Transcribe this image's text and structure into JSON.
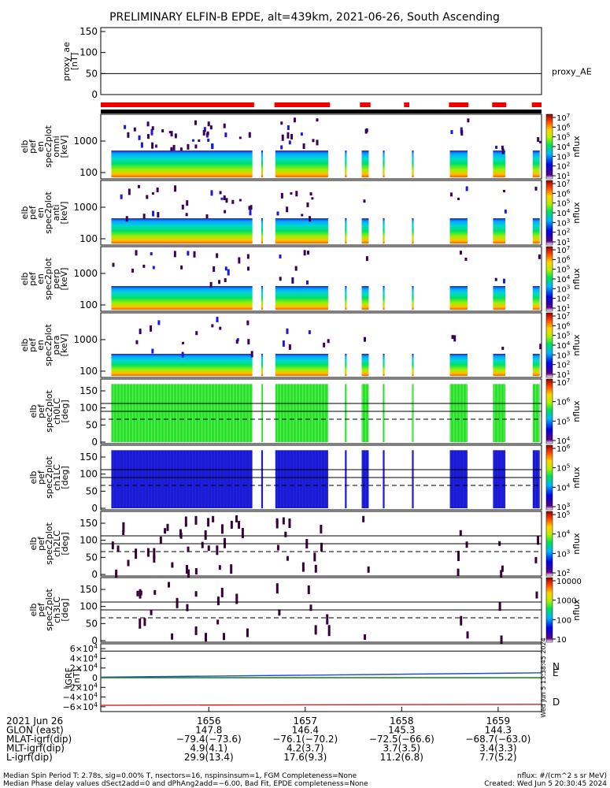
{
  "title": "PRELIMINARY ELFIN-B EPDE, alt=439km, 2021-06-26, South Ascending",
  "colors": {
    "text": "#000000",
    "flag_red": "#ee0000",
    "bx": "#1f4fd6",
    "by": "#22bb22",
    "bz": "#d21f1f",
    "N_label": "#1f4fd6",
    "E_label": "#22bb22",
    "D_label": "#d21f1f"
  },
  "ae_panel": {
    "ylabel_line1": "proxy_ae",
    "ylabel_line2": "[nT]",
    "ticks": [
      "150",
      "100",
      "50",
      "0"
    ],
    "legend": "proxy_AE"
  },
  "spectrogram_panels": [
    {
      "label_lines": [
        "elb",
        "pef",
        "en",
        "spec2plot",
        "omni",
        "[keV]"
      ],
      "yticks": [
        "1000",
        "100"
      ],
      "cbar": "flux",
      "cbar_label": "nflux",
      "cbar_ticks": [
        "10^7",
        "10^6",
        "10^5",
        "10^4",
        "10^3",
        "10^2",
        "10^1"
      ]
    },
    {
      "label_lines": [
        "elb",
        "pef",
        "en",
        "spec2plot",
        "anti",
        "[keV]"
      ],
      "yticks": [
        "1000",
        "100"
      ],
      "cbar": "flux",
      "cbar_label": "nflux",
      "cbar_ticks": [
        "10^7",
        "10^6",
        "10^5",
        "10^4",
        "10^3",
        "10^2",
        "10^1"
      ]
    },
    {
      "label_lines": [
        "elb",
        "pef",
        "en",
        "spec2plot",
        "perp",
        "[keV]"
      ],
      "yticks": [
        "1000",
        "100"
      ],
      "cbar": "flux",
      "cbar_label": "nflux",
      "cbar_ticks": [
        "10^7",
        "10^6",
        "10^5",
        "10^4",
        "10^3",
        "10^2",
        "10^1"
      ]
    },
    {
      "label_lines": [
        "elb",
        "pef",
        "en",
        "spec2plot",
        "para",
        "[keV]"
      ],
      "yticks": [
        "1000",
        "100"
      ],
      "cbar": "flux",
      "cbar_label": "nflux",
      "cbar_ticks": [
        "10^7",
        "10^6",
        "10^5",
        "10^4",
        "10^3",
        "10^2",
        "10^1"
      ]
    }
  ],
  "pitch_panels": [
    {
      "label_lines": [
        "elb",
        "pef",
        "spec2plot",
        "ch0LC",
        "[deg]"
      ],
      "yticks": [
        "150",
        "100",
        "50",
        "0"
      ],
      "cbar_label": "nflux",
      "cbar_ticks": [
        "10^7",
        "10^6",
        "10^5",
        "10^4"
      ]
    },
    {
      "label_lines": [
        "elb",
        "pef",
        "spec2plot",
        "ch1LC",
        "[deg]"
      ],
      "yticks": [
        "150",
        "100",
        "50",
        "0"
      ],
      "cbar_label": "nflux",
      "cbar_ticks": [
        "10^6",
        "10^5",
        "10^4",
        "10^3"
      ]
    },
    {
      "label_lines": [
        "elb",
        "pef",
        "spec2plot",
        "ch2LC",
        "[deg]"
      ],
      "yticks": [
        "150",
        "100",
        "50",
        "0"
      ],
      "cbar_label": "nflux",
      "cbar_ticks": [
        "10^5",
        "10^4",
        "10^3",
        "10^2"
      ]
    },
    {
      "label_lines": [
        "elb",
        "pef",
        "spec2plot",
        "ch3LC",
        "[deg]"
      ],
      "yticks": [
        "150",
        "100",
        "50",
        "0"
      ],
      "cbar_label": "nflux",
      "cbar_ticks": [
        "10000",
        "1000",
        "100",
        "10"
      ]
    }
  ],
  "igrf_panel": {
    "label_lines": [
      "IGRF",
      "[nT]"
    ],
    "ticks": [
      "6×10^4",
      "4×10^4",
      "2×10^4",
      "0",
      "−2×10^4",
      "−4×10^4",
      "−6×10^4"
    ],
    "legend": [
      "N",
      "E",
      "D"
    ],
    "side_stamp": "Wed Jun  5 13:38:45 2024"
  },
  "footer": {
    "rows": [
      {
        "label": "2021 Jun 26",
        "values": [
          "1656",
          "1657",
          "1658",
          "1659"
        ]
      },
      {
        "label": "GLON (east)",
        "values": [
          "147.8",
          "146.4",
          "145.3",
          "144.3"
        ]
      },
      {
        "label": "MLAT-igrf(dip)",
        "values": [
          "−79.4(−73.6)",
          "−76.1(−70.2)",
          "−72.5(−66.6)",
          "−68.7(−63.0)"
        ]
      },
      {
        "label": "MLT-igrf(dip)",
        "values": [
          "4.9(4.1)",
          "4.2(3.7)",
          "3.7(3.5)",
          "3.4(3.3)"
        ]
      },
      {
        "label": "L-igrf(dip)",
        "values": [
          "29.9(13.4)",
          "17.6(9.3)",
          "11.2(6.8)",
          "7.7(5.2)"
        ]
      }
    ],
    "note1": "Median Spin Period T: 2.78s, sig=0.00% T, nsectors=16, nspinsinsum=1, FGM Completeness=None",
    "note2": "Median Phase delay values dSect2add=0 and dPhAng2add=−6.00, Bad Fit, EPDE completeness=None",
    "units": "nflux: #/(cm^2 s sr MeV)",
    "created": "Created: Wed Jun  5 20:30:45 2024"
  },
  "chart_data": {
    "type": "heatmap",
    "title": "PRELIMINARY ELFIN-B EPDE, alt=439km, 2021-06-26, South Ascending",
    "x_ticks": [
      "1656",
      "1657",
      "1658",
      "1659"
    ],
    "x_range_minutes": [
      -1.12,
      3.45
    ],
    "science_zone_flags": [
      {
        "start": 0.0,
        "end": 1.74
      },
      {
        "start": 1.97,
        "end": 2.6
      },
      {
        "start": 2.94,
        "end": 3.06
      },
      {
        "start": 3.44,
        "end": 3.5
      },
      {
        "start": 3.95,
        "end": 4.17
      },
      {
        "start": 4.44,
        "end": 4.6
      },
      {
        "start": 4.89,
        "end": 5.0
      }
    ],
    "data_segments": [
      {
        "start": 0.12,
        "end": 1.72
      },
      {
        "start": 1.82,
        "end": 1.84
      },
      {
        "start": 1.98,
        "end": 2.58
      },
      {
        "start": 2.77,
        "end": 2.79
      },
      {
        "start": 2.96,
        "end": 3.04
      },
      {
        "start": 3.2,
        "end": 3.22
      },
      {
        "start": 3.53,
        "end": 3.55
      },
      {
        "start": 3.96,
        "end": 4.16
      },
      {
        "start": 4.45,
        "end": 4.59
      },
      {
        "start": 4.9,
        "end": 4.98
      }
    ],
    "ae": {
      "ylim": [
        0,
        150
      ],
      "value": 50
    },
    "energy_ylim_keV": [
      60,
      7000
    ],
    "pitch_ylim_deg": [
      0,
      180
    ],
    "pitch_ref_lines_deg": [
      {
        "v": 113,
        "style": "solid"
      },
      {
        "v": 90,
        "style": "solid"
      },
      {
        "v": 67,
        "style": "dashed"
      }
    ],
    "igrf": {
      "ylim": [
        -70000,
        70000
      ],
      "series": [
        {
          "name": "N",
          "values": [
            1000,
            10000
          ]
        },
        {
          "name": "E",
          "values": [
            0,
            0
          ]
        },
        {
          "name": "D",
          "values": [
            -57000,
            -55000
          ]
        }
      ],
      "extra_line": 55000
    },
    "colorbar_scale": "log"
  }
}
